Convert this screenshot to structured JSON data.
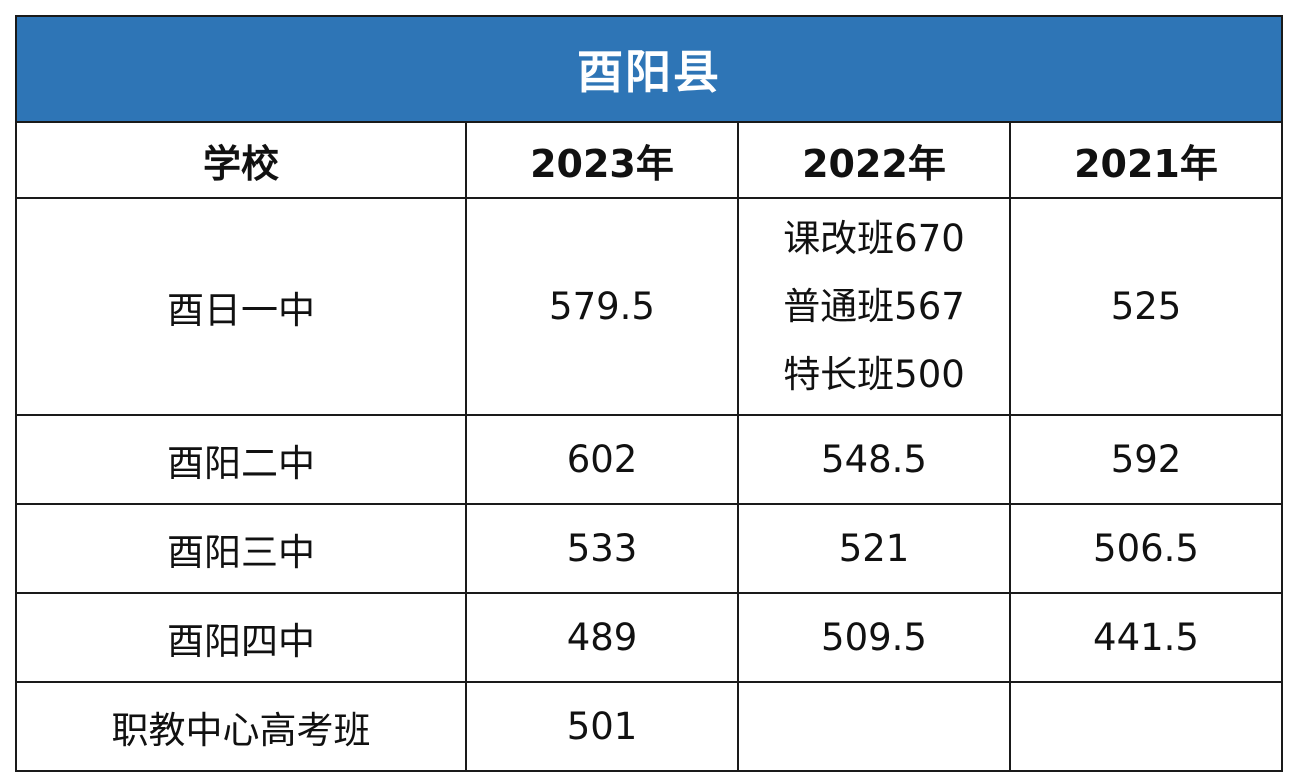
{
  "title": "酉阳县",
  "headers": [
    "学校",
    "2023年",
    "2022年",
    "2021年"
  ],
  "rows": [
    {
      "school": "酉日一中",
      "y2023": "579.5",
      "y2022": [
        "课改班670",
        "普通班567",
        "特长班500"
      ],
      "y2021": "525"
    },
    {
      "school": "酉阳二中",
      "y2023": "602",
      "y2022": "548.5",
      "y2021": "592"
    },
    {
      "school": "酉阳三中",
      "y2023": "533",
      "y2022": "521",
      "y2021": "506.5"
    },
    {
      "school": "酉阳四中",
      "y2023": "489",
      "y2022": "509.5",
      "y2021": "441.5"
    },
    {
      "school": "职教中心高考班",
      "y2023": "501",
      "y2022": "",
      "y2021": ""
    }
  ],
  "colors": {
    "title_background": "#2e75b6",
    "title_text": "#ffffff",
    "grid": "#1a1a1a"
  }
}
